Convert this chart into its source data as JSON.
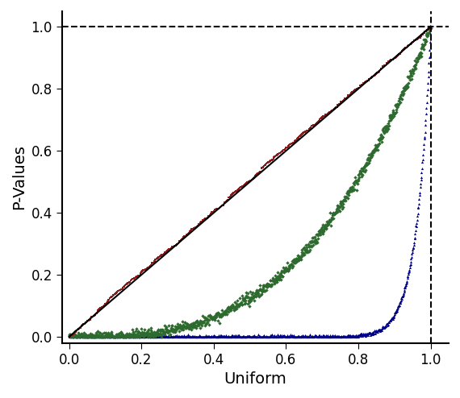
{
  "title": "",
  "xlabel": "Uniform",
  "ylabel": "P-Values",
  "n_points": 1000,
  "diagonal_color": "#000000",
  "red_color": "#8B1A1A",
  "green_color": "#2D6A2D",
  "blue_color": "#00008B",
  "red_marker": "s",
  "green_marker": "D",
  "blue_marker": "^",
  "marker_size_red": 3.0,
  "marker_size_green": 5.0,
  "marker_size_blue": 5.0,
  "background_color": "#FFFFFF",
  "tick_label_size": 12,
  "axis_label_size": 14,
  "red_power": 1.0,
  "red_noise": 0.012,
  "green_power": 3.0,
  "green_noise": 0.008,
  "blue_power": 25.0,
  "blue_noise": 0.003,
  "xlim_lo": -0.02,
  "xlim_hi": 1.05,
  "ylim_lo": -0.02,
  "ylim_hi": 1.05
}
